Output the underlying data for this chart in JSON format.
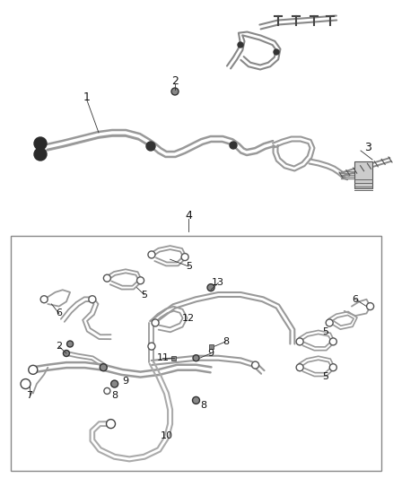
{
  "bg": "#ffffff",
  "lc": "#888888",
  "tc": "#222222",
  "fig_w": 4.38,
  "fig_h": 5.33,
  "dpi": 100,
  "tube_color": "#aaaaaa",
  "tube_dark": "#555555",
  "tube_lw": 1.4,
  "label_fs": 8.0
}
